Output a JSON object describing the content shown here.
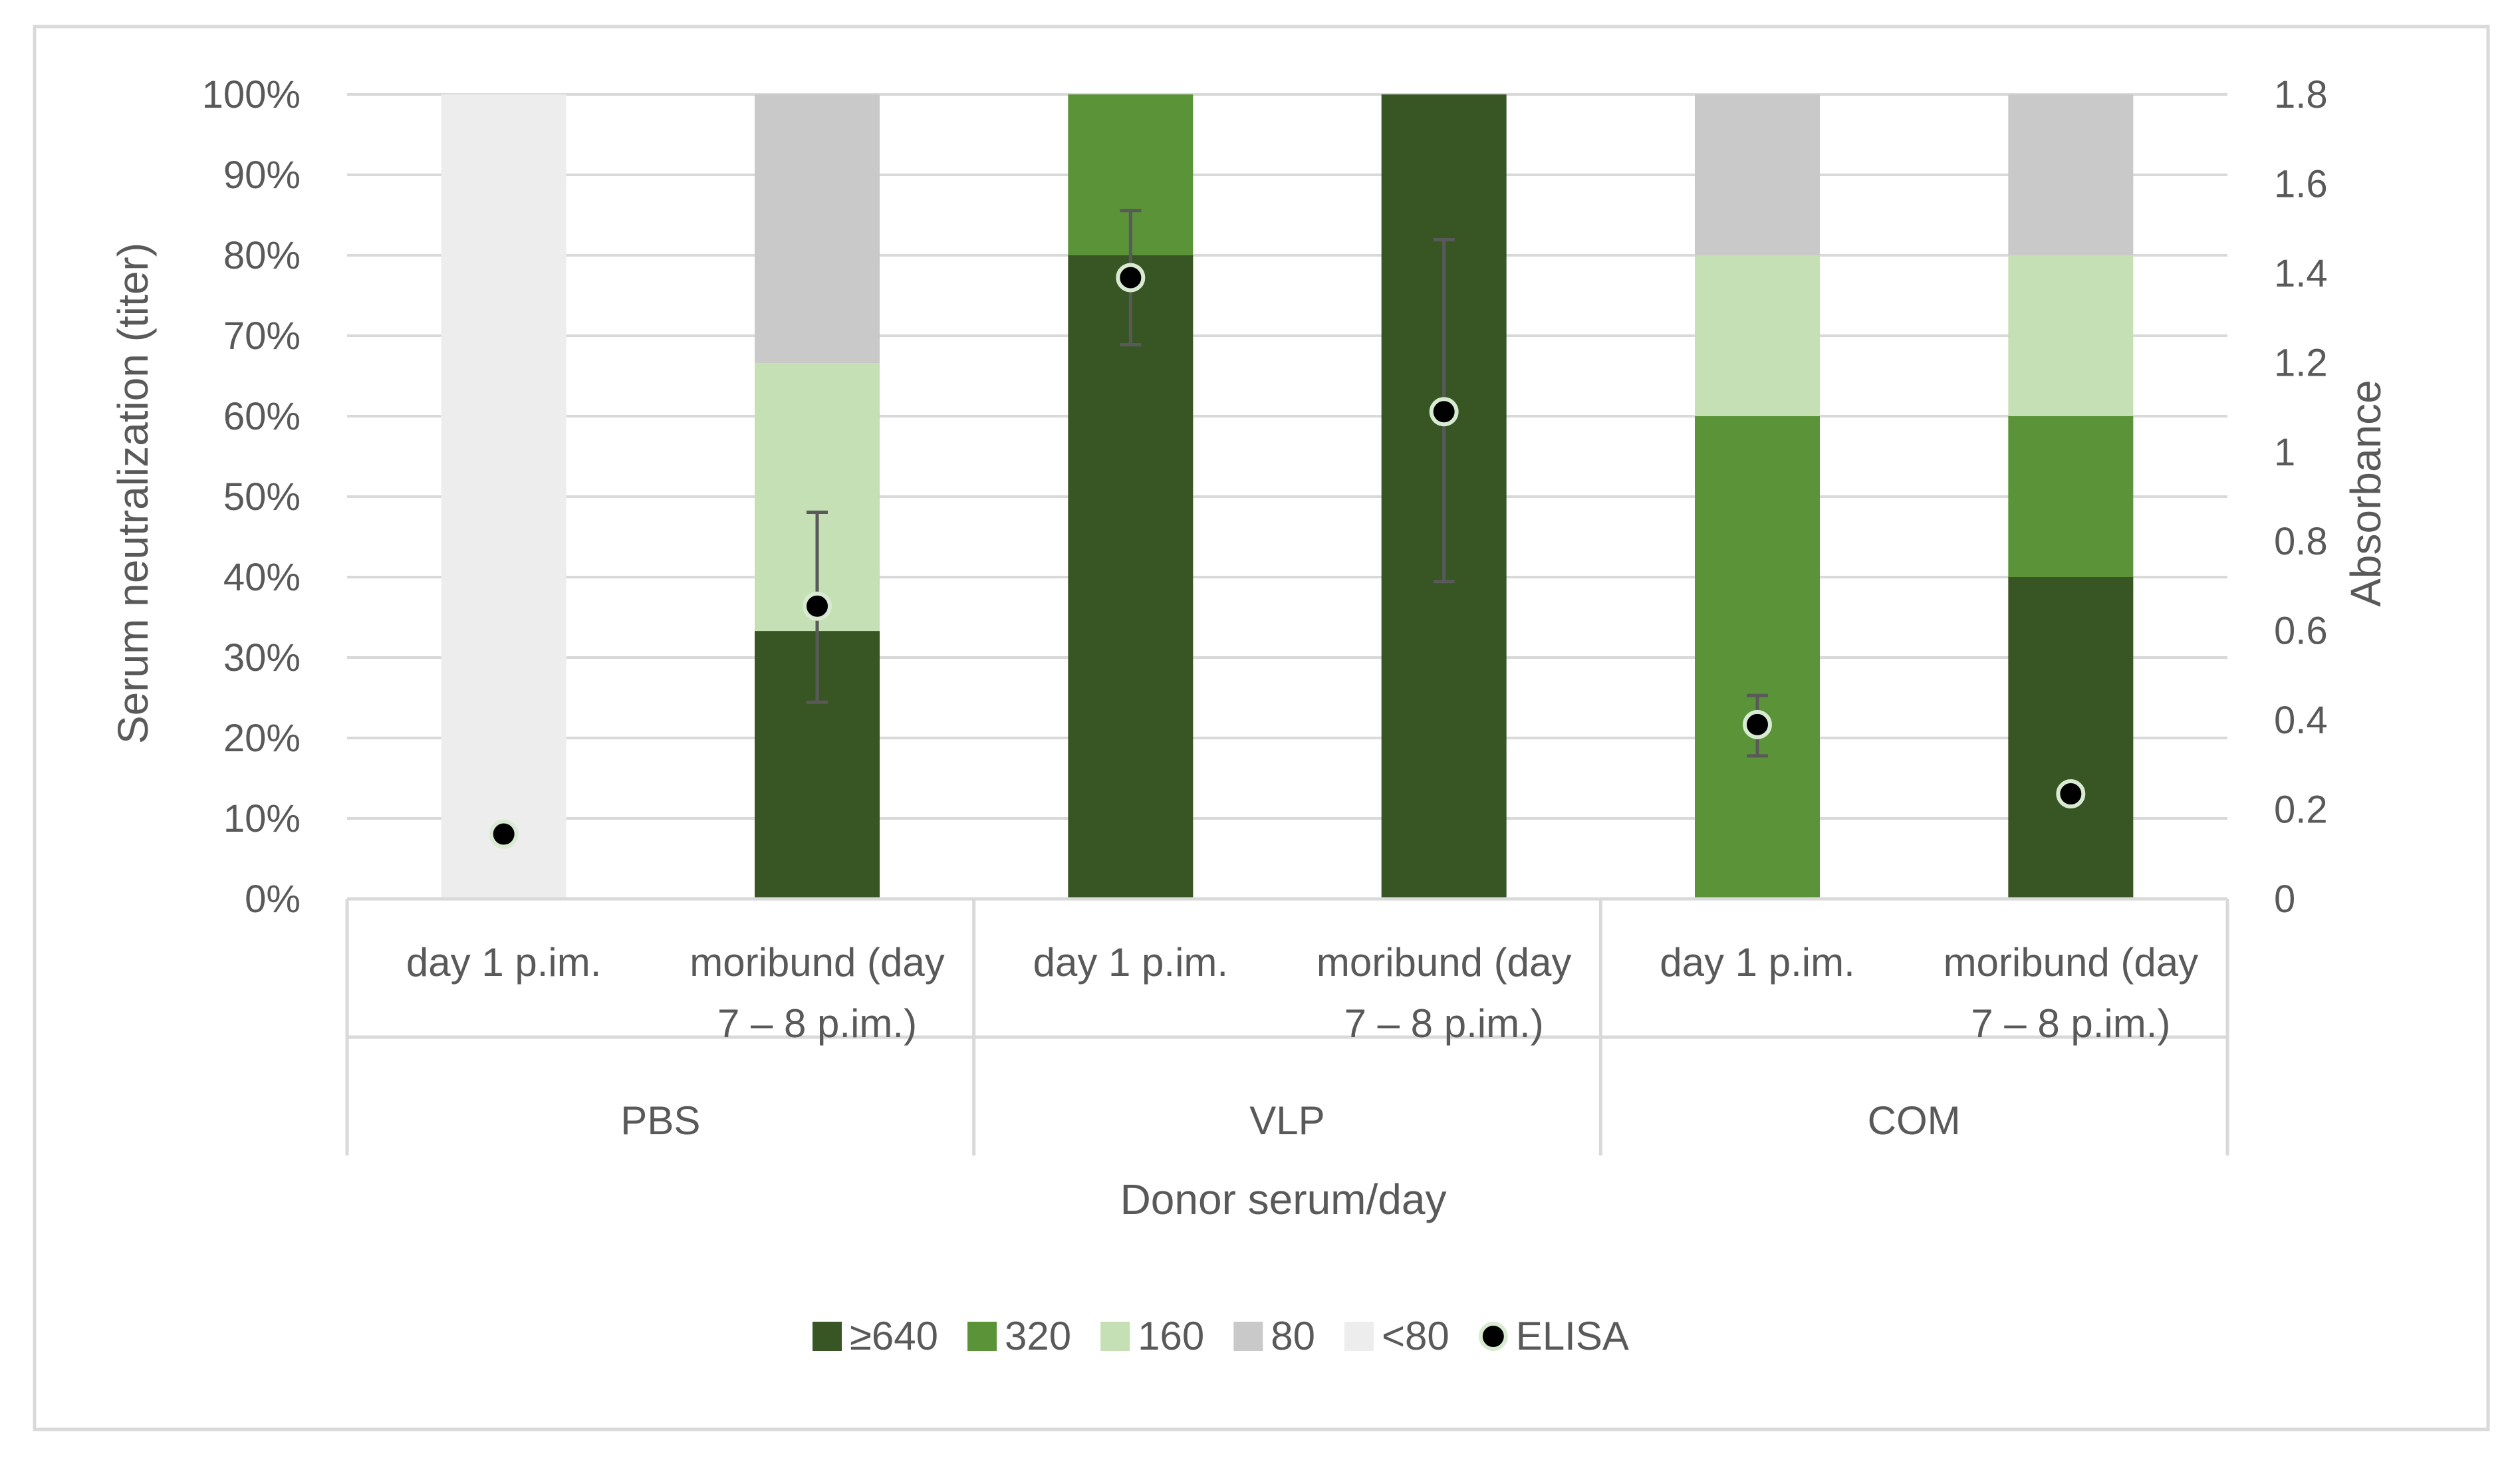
{
  "chart_data": {
    "type": "bar",
    "subtype": "stacked-100-with-scatter-overlay",
    "xlabel": "Donor serum/day",
    "ylabel": "Serum neutralization (titer)",
    "y2label": "Absorbance",
    "ylim": [
      0,
      100
    ],
    "y2lim": [
      0,
      1.8
    ],
    "yticks": [
      "0%",
      "10%",
      "20%",
      "30%",
      "40%",
      "50%",
      "60%",
      "70%",
      "80%",
      "90%",
      "100%"
    ],
    "y2ticks": [
      "0",
      "0.2",
      "0.4",
      "0.6",
      "0.8",
      "1",
      "1.2",
      "1.4",
      "1.6",
      "1.8"
    ],
    "categories": [
      {
        "line1": "day 1 p.im.",
        "line2": ""
      },
      {
        "line1": "moribund (day",
        "line2": "7 – 8 p.im.)"
      },
      {
        "line1": "day 1 p.im.",
        "line2": ""
      },
      {
        "line1": "moribund (day",
        "line2": "7 – 8 p.im.)"
      },
      {
        "line1": "day 1 p.im.",
        "line2": ""
      },
      {
        "line1": "moribund (day",
        "line2": "7 – 8 p.im.)"
      }
    ],
    "groups": [
      {
        "name": "PBS",
        "span": 2
      },
      {
        "name": "VLP",
        "span": 2
      },
      {
        "name": "COM",
        "span": 2
      }
    ],
    "series": [
      {
        "name": "≥640",
        "color": "#375623",
        "values": [
          0,
          33.3,
          80,
          100,
          0,
          40
        ]
      },
      {
        "name": "320",
        "color": "#5b9339",
        "values": [
          0,
          0,
          20,
          0,
          60,
          20
        ]
      },
      {
        "name": "160",
        "color": "#c5e0b4",
        "values": [
          0,
          33.3,
          0,
          0,
          20,
          20
        ]
      },
      {
        "name": "80",
        "color": "#c9c9c9",
        "values": [
          0,
          33.4,
          0,
          0,
          20,
          20
        ]
      },
      {
        "name": "<80",
        "color": "#ededed",
        "values": [
          100,
          0,
          0,
          0,
          0,
          0
        ]
      }
    ],
    "elisa": {
      "name": "ELISA",
      "values": [
        0.145,
        0.655,
        1.39,
        1.09,
        0.39,
        0.235
      ],
      "error_low": [
        0.14,
        0.44,
        1.24,
        0.71,
        0.32,
        0.235
      ],
      "error_high": [
        0.155,
        0.865,
        1.54,
        1.475,
        0.455,
        0.235
      ]
    },
    "legend_position": "bottom"
  }
}
